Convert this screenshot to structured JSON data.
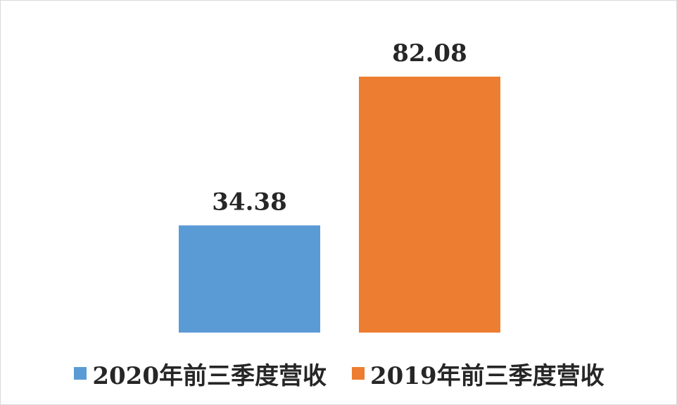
{
  "chart_data": {
    "type": "bar",
    "categories": [
      "2020年前三季度营收",
      "2019年前三季度营收"
    ],
    "values": [
      34.38,
      82.08
    ],
    "data_labels": [
      "34.38",
      "82.08"
    ],
    "colors": [
      "#5b9bd5",
      "#ed7d31"
    ],
    "title": "",
    "xlabel": "",
    "ylabel": "",
    "ylim": [
      0,
      82.08
    ],
    "grid": false,
    "legend_position": "bottom"
  }
}
